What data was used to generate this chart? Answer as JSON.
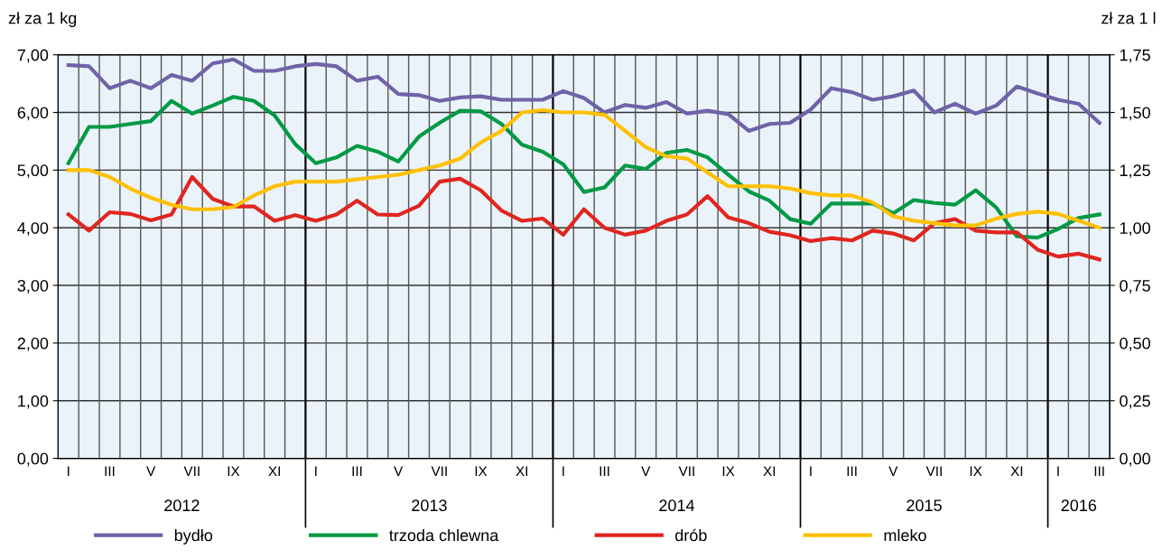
{
  "chart_data": {
    "type": "line",
    "categories": [
      "I",
      null,
      "III",
      null,
      "V",
      null,
      "VII",
      null,
      "IX",
      null,
      "XI",
      null,
      "I",
      null,
      "III",
      null,
      "V",
      null,
      "VII",
      null,
      "IX",
      null,
      "XI",
      null,
      "I",
      null,
      "III",
      null,
      "V",
      null,
      "VII",
      null,
      "IX",
      null,
      "XI",
      null,
      "I",
      null,
      "III",
      null,
      "V",
      null,
      "VII",
      null,
      "IX",
      null,
      "XI",
      null,
      "I",
      null,
      "III"
    ],
    "ylabel": "zł za 1 kg",
    "y2label": "zł za 1 l",
    "series": [
      {
        "name": "bydło",
        "color": "#6f63a8",
        "values": [
          6.82,
          6.8,
          6.42,
          6.55,
          6.42,
          6.65,
          6.55,
          6.85,
          6.92,
          6.72,
          6.72,
          6.8,
          6.84,
          6.8,
          6.55,
          6.62,
          6.32,
          6.3,
          6.2,
          6.26,
          6.28,
          6.22,
          6.22,
          6.22,
          6.37,
          6.25,
          6.0,
          6.13,
          6.08,
          6.18,
          5.98,
          6.03,
          5.97,
          5.68,
          5.8,
          5.82,
          6.05,
          6.42,
          6.35,
          6.22,
          6.28,
          6.38,
          6.0,
          6.15,
          5.98,
          6.12,
          6.45,
          6.33,
          6.22,
          6.15,
          5.82
        ]
      },
      {
        "name": "trzoda chlewna",
        "color": "#009a44",
        "values": [
          5.12,
          5.75,
          5.75,
          5.8,
          5.85,
          6.2,
          5.98,
          6.12,
          6.27,
          6.2,
          5.95,
          5.45,
          5.12,
          5.22,
          5.42,
          5.32,
          5.15,
          5.58,
          5.82,
          6.03,
          6.02,
          5.8,
          5.44,
          5.32,
          5.1,
          4.62,
          4.7,
          5.08,
          5.02,
          5.3,
          5.35,
          5.22,
          4.92,
          4.63,
          4.47,
          4.15,
          4.07,
          4.42,
          4.42,
          4.42,
          4.25,
          4.48,
          4.43,
          4.4,
          4.65,
          4.35,
          3.85,
          3.83,
          3.98,
          4.17,
          4.23
        ]
      },
      {
        "name": "drób",
        "color": "#e0261f",
        "values": [
          4.23,
          3.95,
          4.27,
          4.24,
          4.13,
          4.23,
          4.88,
          4.5,
          4.37,
          4.37,
          4.12,
          4.22,
          4.12,
          4.23,
          4.47,
          4.23,
          4.22,
          4.38,
          4.8,
          4.85,
          4.65,
          4.3,
          4.12,
          4.16,
          3.88,
          4.32,
          4.0,
          3.88,
          3.95,
          4.12,
          4.23,
          4.55,
          4.18,
          4.08,
          3.93,
          3.87,
          3.77,
          3.82,
          3.78,
          3.95,
          3.9,
          3.78,
          4.08,
          4.15,
          3.95,
          3.92,
          3.92,
          3.62,
          3.5,
          3.55,
          3.45
        ]
      },
      {
        "name": "mleko",
        "color": "#ffc000",
        "axis": "y2",
        "values": [
          1.25,
          1.25,
          1.22,
          1.17,
          1.13,
          1.1,
          1.08,
          1.08,
          1.09,
          1.14,
          1.18,
          1.2,
          1.2,
          1.2,
          1.21,
          1.22,
          1.23,
          1.25,
          1.27,
          1.3,
          1.37,
          1.42,
          1.5,
          1.51,
          1.5,
          1.5,
          1.49,
          1.42,
          1.35,
          1.31,
          1.3,
          1.24,
          1.18,
          1.18,
          1.18,
          1.17,
          1.15,
          1.14,
          1.14,
          1.11,
          1.05,
          1.03,
          1.02,
          1.01,
          1.01,
          1.04,
          1.06,
          1.07,
          1.06,
          1.03,
          1.0
        ]
      }
    ],
    "ylim": [
      0,
      7
    ],
    "yticks": [
      {
        "value": 0,
        "label": "0,00"
      },
      {
        "value": 1,
        "label": "1,00"
      },
      {
        "value": 2,
        "label": "2,00"
      },
      {
        "value": 3,
        "label": "3,00"
      },
      {
        "value": 4,
        "label": "4,00"
      },
      {
        "value": 5,
        "label": "5,00"
      },
      {
        "value": 6,
        "label": "6,00"
      },
      {
        "value": 7,
        "label": "7,00"
      }
    ],
    "y2lim": [
      0,
      1.75
    ],
    "y2ticks": [
      {
        "value": 0,
        "label": "0,00"
      },
      {
        "value": 0.25,
        "label": "0,25"
      },
      {
        "value": 0.5,
        "label": "0,50"
      },
      {
        "value": 0.75,
        "label": "0,75"
      },
      {
        "value": 1,
        "label": "1,00"
      },
      {
        "value": 1.25,
        "label": "1,25"
      },
      {
        "value": 1.5,
        "label": "1,50"
      },
      {
        "value": 1.75,
        "label": "1,75"
      }
    ],
    "annotations": [
      "2012",
      "2013",
      "2014",
      "2015",
      "2016"
    ],
    "grid": true,
    "legend": "bottom",
    "marker": "none",
    "line_style": "solid"
  }
}
